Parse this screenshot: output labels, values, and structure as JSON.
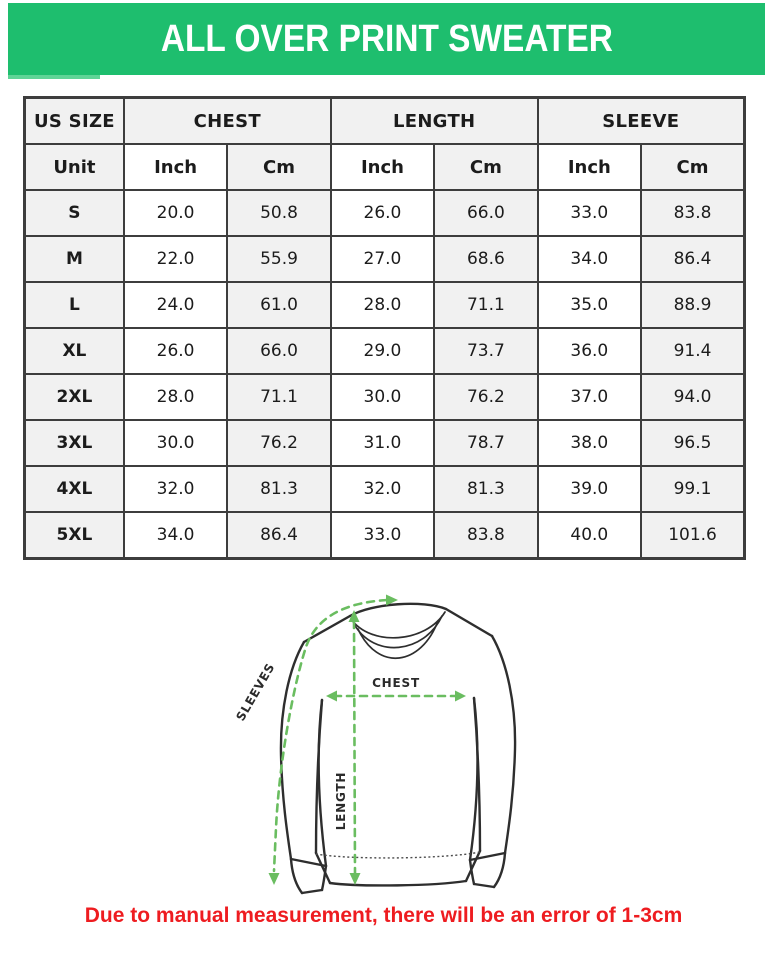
{
  "header": {
    "title": "ALL OVER PRINT SWEATER",
    "bg_color": "#1ebe6e",
    "accent_color": "#5fd496",
    "text_color": "#ffffff"
  },
  "table": {
    "column_groups": [
      {
        "label": "US SIZE"
      },
      {
        "label": "CHEST"
      },
      {
        "label": "LENGTH"
      },
      {
        "label": "SLEEVE"
      }
    ],
    "unit_row": [
      "Unit",
      "Inch",
      "Cm",
      "Inch",
      "Cm",
      "Inch",
      "Cm"
    ],
    "rows": [
      {
        "size": "S",
        "values": [
          "20.0",
          "50.8",
          "26.0",
          "66.0",
          "33.0",
          "83.8"
        ]
      },
      {
        "size": "M",
        "values": [
          "22.0",
          "55.9",
          "27.0",
          "68.6",
          "34.0",
          "86.4"
        ]
      },
      {
        "size": "L",
        "values": [
          "24.0",
          "61.0",
          "28.0",
          "71.1",
          "35.0",
          "88.9"
        ]
      },
      {
        "size": "XL",
        "values": [
          "26.0",
          "66.0",
          "29.0",
          "73.7",
          "36.0",
          "91.4"
        ]
      },
      {
        "size": "2XL",
        "values": [
          "28.0",
          "71.1",
          "30.0",
          "76.2",
          "37.0",
          "94.0"
        ]
      },
      {
        "size": "3XL",
        "values": [
          "30.0",
          "76.2",
          "31.0",
          "78.7",
          "38.0",
          "96.5"
        ]
      },
      {
        "size": "4XL",
        "values": [
          "32.0",
          "81.3",
          "32.0",
          "81.3",
          "39.0",
          "99.1"
        ]
      },
      {
        "size": "5XL",
        "values": [
          "34.0",
          "86.4",
          "33.0",
          "83.8",
          "40.0",
          "101.6"
        ]
      }
    ]
  },
  "diagram": {
    "labels": {
      "sleeves": "SLEEVES",
      "chest": "CHEST",
      "length": "LENGTH"
    },
    "arrow_color": "#6abd60",
    "line_color": "#2e2e2e"
  },
  "note": {
    "text": "Due to manual measurement, there will be an error of 1-3cm",
    "color": "#ee1c20"
  }
}
